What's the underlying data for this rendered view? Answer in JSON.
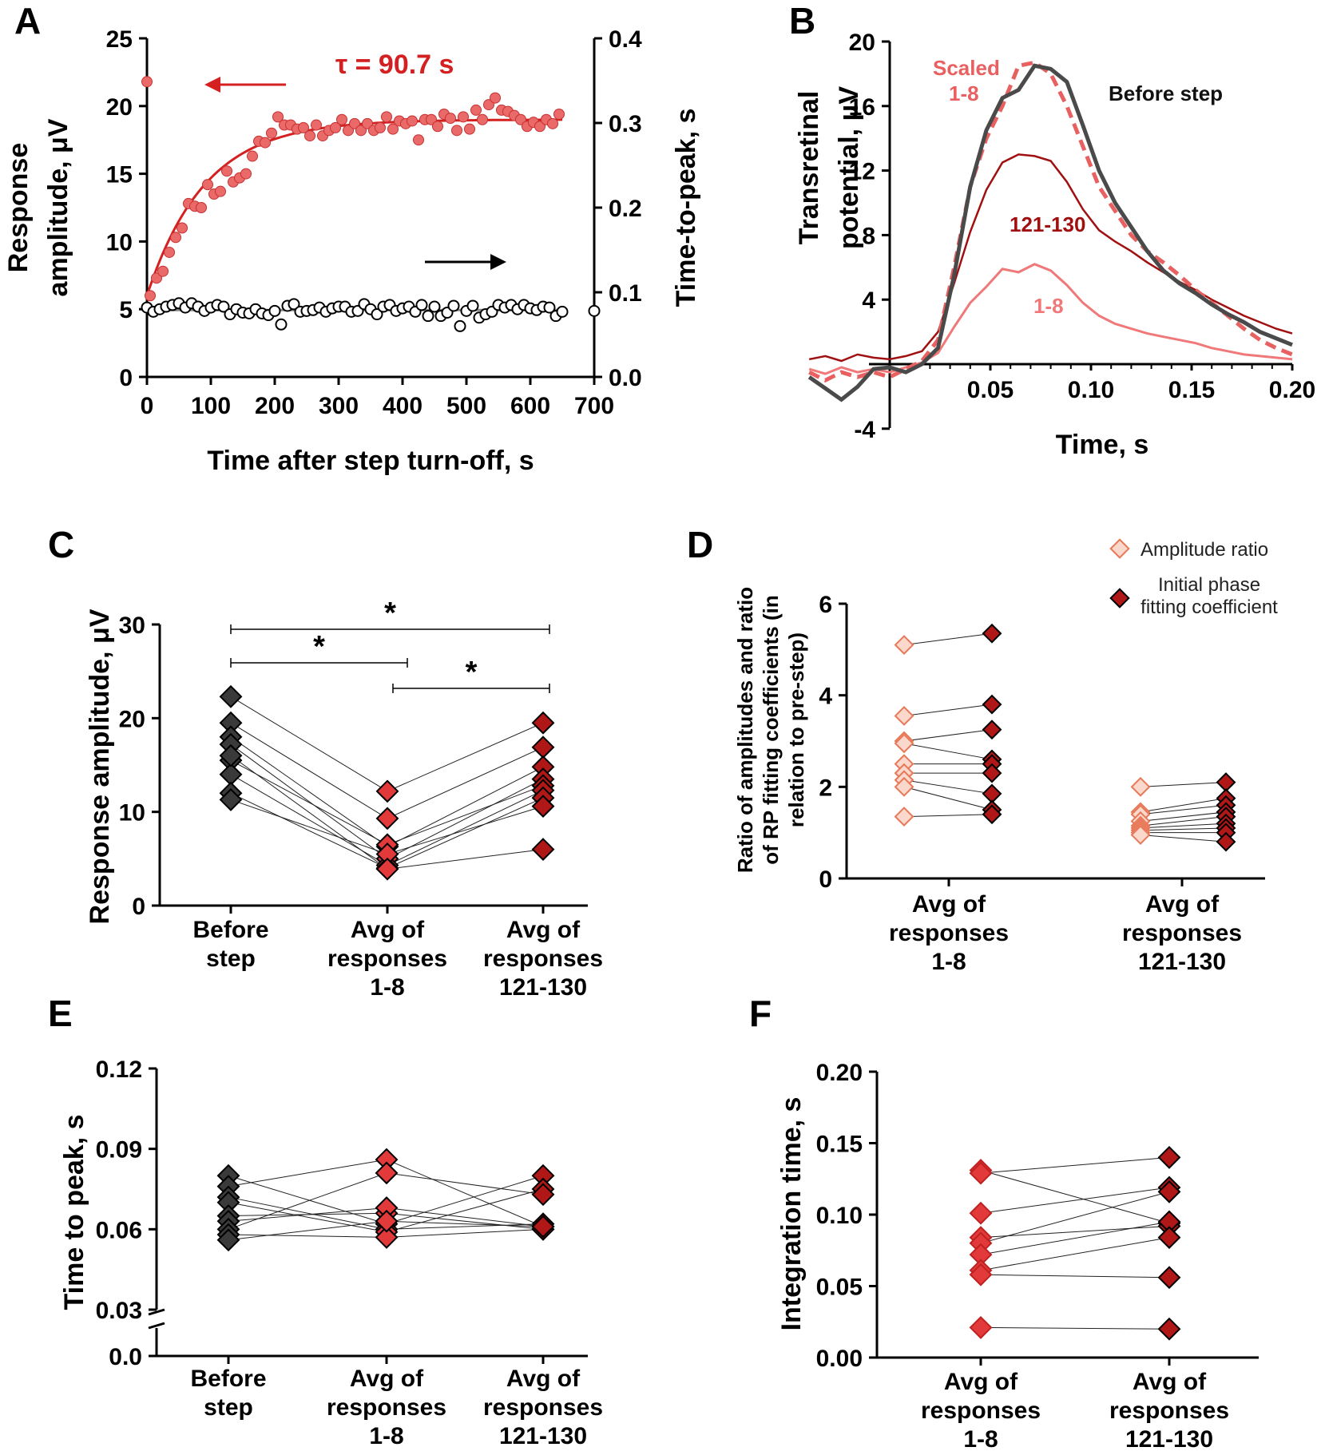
{
  "colors": {
    "before": "#3a3a3a",
    "early": "#e23a3a",
    "late": "#b01818",
    "pink": "#f0a090",
    "fit": "#d42020",
    "scatter": "#ea6a6a",
    "trace_dark": "#4a4a4a",
    "trace_dashed": "#e86060",
    "trace_mid": "#a01010",
    "trace_light": "#f07878"
  },
  "chart_data": [
    {
      "panel": "A",
      "type": "scatter",
      "xlabel": "Time after step turn-off, s",
      "ylabel_left": [
        "Response",
        "amplitude, μV"
      ],
      "ylabel_right": "Time-to-peak, s",
      "xlim": [
        0,
        700
      ],
      "ylim_left": [
        0,
        25
      ],
      "ylim_right": [
        0,
        0.4
      ],
      "xticks": [
        "0",
        "100",
        "200",
        "300",
        "400",
        "500",
        "600",
        "700"
      ],
      "yticks_left": [
        "0",
        "5",
        "10",
        "15",
        "20",
        "25"
      ],
      "yticks_right": [
        "0.0",
        "0.1",
        "0.2",
        "0.3",
        "0.4"
      ],
      "annotation": "τ = 90.7 s",
      "fit": {
        "y0": 6.0,
        "plateau": 19.0,
        "tau": 90.7
      },
      "amplitude_series": {
        "x": [
          0,
          5,
          15,
          25,
          35,
          45,
          55,
          65,
          75,
          85,
          95,
          105,
          115,
          125,
          135,
          145,
          155,
          165,
          175,
          185,
          195,
          205,
          215,
          225,
          235,
          245,
          255,
          265,
          275,
          285,
          295,
          305,
          315,
          325,
          335,
          345,
          355,
          365,
          375,
          385,
          395,
          405,
          415,
          425,
          435,
          445,
          455,
          465,
          475,
          485,
          495,
          505,
          515,
          525,
          535,
          545,
          555,
          565,
          575,
          585,
          595,
          605,
          615,
          625,
          635,
          645
        ],
        "y": [
          21.8,
          6.0,
          7.3,
          7.8,
          9.2,
          10.3,
          11.0,
          12.8,
          12.6,
          12.5,
          14.2,
          13.5,
          13.7,
          15.2,
          14.4,
          14.7,
          15.0,
          16.3,
          17.4,
          17.3,
          18.0,
          19.2,
          18.6,
          18.6,
          18.3,
          18.4,
          17.8,
          18.6,
          17.8,
          18.2,
          18.4,
          19.0,
          18.2,
          18.7,
          18.2,
          18.7,
          18.2,
          18.4,
          19.2,
          18.3,
          18.9,
          18.7,
          18.9,
          17.5,
          19.0,
          19.0,
          18.5,
          19.4,
          19.1,
          18.2,
          19.2,
          18.3,
          19.7,
          19.0,
          20.1,
          20.6,
          19.7,
          19.6,
          19.3,
          19.0,
          18.5,
          18.8,
          18.5,
          19.0,
          18.7,
          19.4
        ]
      },
      "ttp_series": {
        "x": [
          0,
          10,
          20,
          30,
          40,
          50,
          60,
          70,
          80,
          90,
          100,
          110,
          120,
          130,
          140,
          150,
          160,
          170,
          180,
          190,
          200,
          210,
          220,
          230,
          240,
          250,
          260,
          270,
          280,
          290,
          300,
          310,
          320,
          330,
          340,
          350,
          360,
          370,
          380,
          390,
          400,
          410,
          420,
          430,
          440,
          450,
          460,
          470,
          480,
          490,
          500,
          510,
          520,
          530,
          540,
          550,
          560,
          570,
          580,
          590,
          600,
          610,
          620,
          630,
          640,
          650,
          700
        ],
        "y": [
          0.082,
          0.077,
          0.08,
          0.083,
          0.085,
          0.087,
          0.082,
          0.087,
          0.083,
          0.078,
          0.082,
          0.085,
          0.083,
          0.074,
          0.08,
          0.076,
          0.075,
          0.08,
          0.075,
          0.073,
          0.078,
          0.062,
          0.084,
          0.086,
          0.077,
          0.078,
          0.079,
          0.082,
          0.077,
          0.081,
          0.083,
          0.083,
          0.077,
          0.078,
          0.086,
          0.08,
          0.074,
          0.083,
          0.085,
          0.078,
          0.081,
          0.083,
          0.077,
          0.085,
          0.072,
          0.083,
          0.072,
          0.076,
          0.084,
          0.06,
          0.078,
          0.084,
          0.07,
          0.074,
          0.077,
          0.085,
          0.082,
          0.085,
          0.08,
          0.085,
          0.081,
          0.079,
          0.083,
          0.082,
          0.072,
          0.077,
          0.078
        ]
      },
      "ttp_mean": 0.079
    },
    {
      "panel": "B",
      "type": "line",
      "xlabel": "Time, s",
      "ylabel": [
        "Transretinal",
        "potential, μV"
      ],
      "xlim": [
        -0.04,
        0.2
      ],
      "ylim": [
        -4,
        20
      ],
      "xticks": [
        "0.05",
        "0.10",
        "0.15",
        "0.20"
      ],
      "yticks": [
        "-4",
        "4",
        "8",
        "12",
        "16",
        "20"
      ],
      "series": [
        {
          "name": "Before step",
          "style": "solid-thick",
          "t": [
            -0.04,
            -0.032,
            -0.024,
            -0.016,
            -0.008,
            0.0,
            0.008,
            0.016,
            0.024,
            0.032,
            0.04,
            0.048,
            0.056,
            0.064,
            0.072,
            0.08,
            0.088,
            0.096,
            0.104,
            0.112,
            0.12,
            0.128,
            0.136,
            0.144,
            0.152,
            0.16,
            0.168,
            0.176,
            0.184,
            0.192,
            0.2
          ],
          "v": [
            -0.8,
            -1.5,
            -2.2,
            -1.4,
            -0.3,
            -0.2,
            -0.5,
            0.0,
            1.0,
            5.5,
            11.0,
            14.5,
            16.5,
            17.0,
            18.5,
            18.3,
            17.5,
            14.8,
            12.0,
            10.0,
            8.5,
            7.0,
            5.8,
            5.0,
            4.4,
            3.7,
            3.1,
            2.6,
            2.0,
            1.6,
            1.2
          ]
        },
        {
          "name": "Scaled 1-8",
          "style": "dashed",
          "t": [
            -0.04,
            -0.032,
            -0.024,
            -0.016,
            -0.008,
            0.0,
            0.008,
            0.016,
            0.024,
            0.032,
            0.04,
            0.048,
            0.056,
            0.064,
            0.072,
            0.08,
            0.088,
            0.096,
            0.104,
            0.112,
            0.12,
            0.128,
            0.136,
            0.144,
            0.152,
            0.16,
            0.168,
            0.176,
            0.184,
            0.192,
            0.2
          ],
          "v": [
            -0.5,
            -1.0,
            -0.5,
            -0.8,
            -0.5,
            -0.8,
            -0.3,
            0.2,
            1.5,
            6.0,
            11.0,
            14.0,
            16.0,
            18.5,
            18.7,
            18.0,
            16.0,
            13.5,
            11.0,
            9.5,
            8.0,
            7.0,
            6.3,
            5.5,
            4.6,
            3.8,
            3.0,
            2.2,
            1.5,
            1.0,
            0.6
          ]
        },
        {
          "name": "121-130",
          "style": "solid-thin",
          "t": [
            -0.04,
            -0.032,
            -0.024,
            -0.016,
            -0.008,
            0.0,
            0.008,
            0.016,
            0.024,
            0.032,
            0.04,
            0.048,
            0.056,
            0.064,
            0.072,
            0.08,
            0.088,
            0.096,
            0.104,
            0.112,
            0.12,
            0.128,
            0.136,
            0.144,
            0.152,
            0.16,
            0.168,
            0.176,
            0.184,
            0.192,
            0.2
          ],
          "v": [
            0.3,
            0.5,
            0.2,
            0.6,
            0.4,
            0.3,
            0.5,
            0.8,
            2.0,
            5.0,
            8.2,
            10.8,
            12.5,
            13.0,
            12.9,
            12.6,
            11.3,
            9.6,
            8.3,
            7.6,
            7.0,
            6.3,
            5.7,
            5.1,
            4.6,
            4.0,
            3.5,
            3.0,
            2.6,
            2.2,
            1.9
          ]
        },
        {
          "name": "1-8",
          "style": "solid-light",
          "t": [
            -0.04,
            -0.032,
            -0.024,
            -0.016,
            -0.008,
            0.0,
            0.008,
            0.016,
            0.024,
            0.032,
            0.04,
            0.048,
            0.056,
            0.064,
            0.072,
            0.08,
            0.088,
            0.096,
            0.104,
            0.112,
            0.12,
            0.128,
            0.136,
            0.144,
            0.152,
            0.16,
            0.168,
            0.176,
            0.184,
            0.192,
            0.2
          ],
          "v": [
            -0.3,
            -0.6,
            -0.2,
            -0.5,
            -0.3,
            -0.5,
            -0.2,
            0.1,
            0.7,
            2.3,
            3.8,
            4.8,
            5.9,
            5.7,
            6.2,
            5.8,
            4.9,
            3.8,
            3.0,
            2.5,
            2.2,
            1.9,
            1.7,
            1.5,
            1.3,
            1.0,
            0.8,
            0.6,
            0.5,
            0.4,
            0.3
          ]
        }
      ],
      "labels": [
        "Scaled",
        "1-8",
        "Before step",
        "121-130",
        "1-8"
      ]
    },
    {
      "panel": "C",
      "type": "scatter",
      "ylabel": "Response amplitude, μV",
      "ylim": [
        0,
        30
      ],
      "yticks": [
        "0",
        "10",
        "20",
        "30"
      ],
      "categories": [
        [
          "Before",
          "step"
        ],
        [
          "Avg of",
          "responses",
          "1-8"
        ],
        [
          "Avg of",
          "responses",
          "121-130"
        ]
      ],
      "paired_values": [
        [
          22.3,
          12.2,
          19.5
        ],
        [
          19.5,
          9.3,
          16.9
        ],
        [
          18.0,
          6.3,
          14.8
        ],
        [
          17.2,
          5.0,
          13.5
        ],
        [
          15.5,
          6.5,
          12.8
        ],
        [
          14.0,
          4.3,
          12.3
        ],
        [
          12.0,
          4.0,
          11.5
        ],
        [
          11.3,
          5.5,
          10.6
        ],
        [
          16.0,
          3.9,
          6.0
        ]
      ],
      "significance": [
        {
          "from": 0,
          "to": 2,
          "label": "*"
        },
        {
          "from": 0,
          "to": 1,
          "label": "*"
        },
        {
          "from": 1,
          "to": 2,
          "label": "*"
        }
      ]
    },
    {
      "panel": "D",
      "type": "scatter",
      "ylabel": [
        "Ratio of amplitudes and ratio",
        "of RP fitting coefficients (in",
        "relation to pre-step)"
      ],
      "ylim": [
        0,
        6
      ],
      "yticks": [
        "0",
        "2",
        "4",
        "6"
      ],
      "categories": [
        [
          "Avg of",
          "responses",
          "1-8"
        ],
        [
          "Avg of",
          "responses",
          "121-130"
        ]
      ],
      "legend": [
        "Amplitude ratio",
        [
          "Initial phase",
          "fitting coefficient"
        ]
      ],
      "groups": [
        {
          "amplitude_ratio": [
            5.1,
            3.55,
            3.0,
            2.95,
            2.5,
            2.3,
            2.15,
            2.0,
            1.35
          ],
          "fitting_coefficient": [
            5.35,
            3.8,
            3.25,
            2.6,
            2.5,
            2.3,
            1.85,
            1.5,
            1.4
          ]
        },
        {
          "amplitude_ratio": [
            2.0,
            1.45,
            1.4,
            1.25,
            1.15,
            1.1,
            1.05,
            1.0,
            0.95
          ],
          "fitting_coefficient": [
            2.1,
            1.75,
            1.6,
            1.45,
            1.35,
            1.2,
            1.1,
            1.0,
            0.8
          ]
        }
      ]
    },
    {
      "panel": "E",
      "type": "scatter",
      "ylabel": "Time to peak, s",
      "ylim": [
        0.0,
        0.12
      ],
      "axis_break": [
        0.0,
        0.03
      ],
      "yticks": [
        "0.0",
        "0.03",
        "0.06",
        "0.09",
        "0.12"
      ],
      "categories": [
        [
          "Before",
          "step"
        ],
        [
          "Avg of",
          "responses",
          "1-8"
        ],
        [
          "Avg of",
          "responses",
          "121-130"
        ]
      ],
      "paired_values": [
        [
          0.08,
          0.062,
          0.08
        ],
        [
          0.076,
          0.086,
          0.061
        ],
        [
          0.072,
          0.06,
          0.062
        ],
        [
          0.07,
          0.059,
          0.075
        ],
        [
          0.065,
          0.066,
          0.06
        ],
        [
          0.063,
          0.068,
          0.061
        ],
        [
          0.06,
          0.081,
          0.073
        ],
        [
          0.058,
          0.057,
          0.06
        ],
        [
          0.056,
          0.063,
          0.061
        ]
      ]
    },
    {
      "panel": "F",
      "type": "scatter",
      "ylabel": "Integration time, s",
      "ylim": [
        0.0,
        0.2
      ],
      "yticks": [
        "0.00",
        "0.05",
        "0.10",
        "0.15",
        "0.20"
      ],
      "categories": [
        [
          "Avg of",
          "responses",
          "1-8"
        ],
        [
          "Avg of",
          "responses",
          "121-130"
        ]
      ],
      "paired_values": [
        [
          0.131,
          0.094
        ],
        [
          0.129,
          0.14
        ],
        [
          0.101,
          0.119
        ],
        [
          0.084,
          0.092
        ],
        [
          0.08,
          0.116
        ],
        [
          0.072,
          0.095
        ],
        [
          0.061,
          0.084
        ],
        [
          0.058,
          0.056
        ],
        [
          0.021,
          0.02
        ]
      ]
    }
  ],
  "panel_letters": [
    "A",
    "B",
    "C",
    "D",
    "E",
    "F"
  ]
}
